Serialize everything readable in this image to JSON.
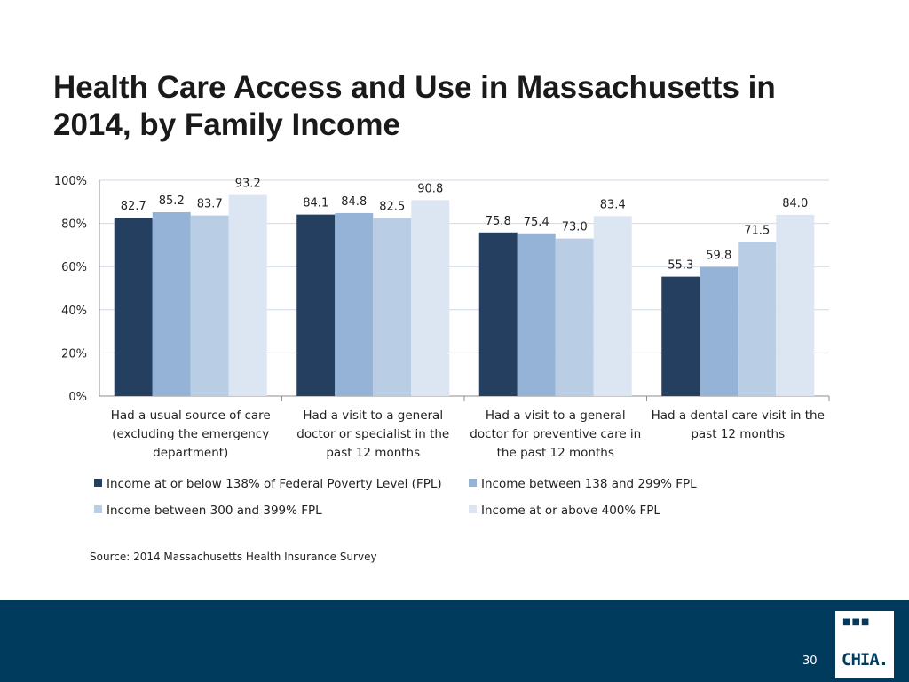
{
  "slide": {
    "title": "Health Care Access and Use in Massachusetts in 2014, by Family Income",
    "source": "Source:  2014 Massachusetts Health Insurance Survey",
    "page_number": "30",
    "logo_text": "CHIA."
  },
  "chart_data": {
    "type": "bar",
    "title": "Health Care Access and Use in Massachusetts in 2014, by Family Income",
    "categories": [
      [
        "Had a usual source of care",
        "(excluding the emergency",
        "department)"
      ],
      [
        "Had a visit to a general",
        "doctor or specialist in the",
        "past 12 months"
      ],
      [
        "Had a visit to a general",
        "doctor for preventive care in",
        "the past 12 months"
      ],
      [
        "Had a dental care visit in the",
        "past 12 months"
      ]
    ],
    "series": [
      {
        "name": "Income at or below 138% of Federal Poverty Level (FPL)",
        "color": "#243f60",
        "values": [
          82.7,
          84.1,
          75.8,
          55.3
        ],
        "labels": [
          "82.7",
          "84.1",
          "75.8",
          "55.3"
        ]
      },
      {
        "name": "Income between 138 and 299% FPL",
        "color": "#95b3d7",
        "values": [
          85.2,
          84.8,
          75.4,
          59.8
        ],
        "labels": [
          "85.2",
          "84.8",
          "75.4",
          "59.8"
        ]
      },
      {
        "name": "Income between 300 and 399% FPL",
        "color": "#b9cde5",
        "values": [
          83.7,
          82.5,
          73.0,
          71.5
        ],
        "labels": [
          "83.7",
          "82.5",
          "73.0",
          "71.5"
        ]
      },
      {
        "name": "Income at or above 400% FPL",
        "color": "#dce6f2",
        "values": [
          93.2,
          90.8,
          83.4,
          84.0
        ],
        "labels": [
          "93.2",
          "90.8",
          "83.4",
          "84.0"
        ]
      }
    ],
    "yticks": [
      "0%",
      "20%",
      "40%",
      "60%",
      "80%",
      "100%"
    ],
    "ylim": [
      0,
      100
    ],
    "xlabel": "",
    "ylabel": "",
    "grid": true,
    "legend_position": "bottom"
  }
}
